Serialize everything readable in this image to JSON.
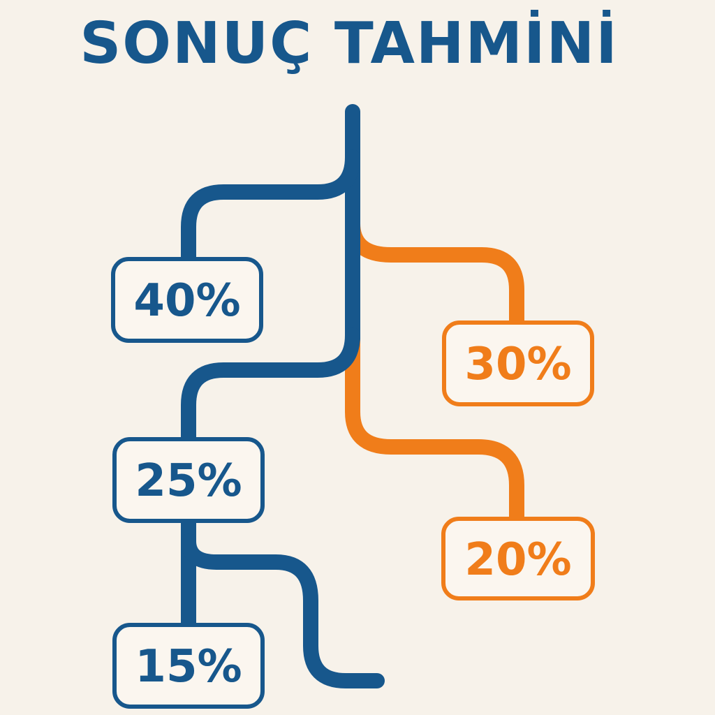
{
  "title": "SONUÇ TAHMİNİ",
  "colors": {
    "background": "#f7f2ea",
    "blue": "#17578c",
    "orange": "#f07d1a"
  },
  "outcomes": [
    {
      "label": "40%",
      "value": 40,
      "branch": "blue"
    },
    {
      "label": "30%",
      "value": 30,
      "branch": "orange"
    },
    {
      "label": "25%",
      "value": 25,
      "branch": "blue"
    },
    {
      "label": "20%",
      "value": 20,
      "branch": "orange"
    },
    {
      "label": "15%",
      "value": 15,
      "branch": "blue"
    }
  ]
}
